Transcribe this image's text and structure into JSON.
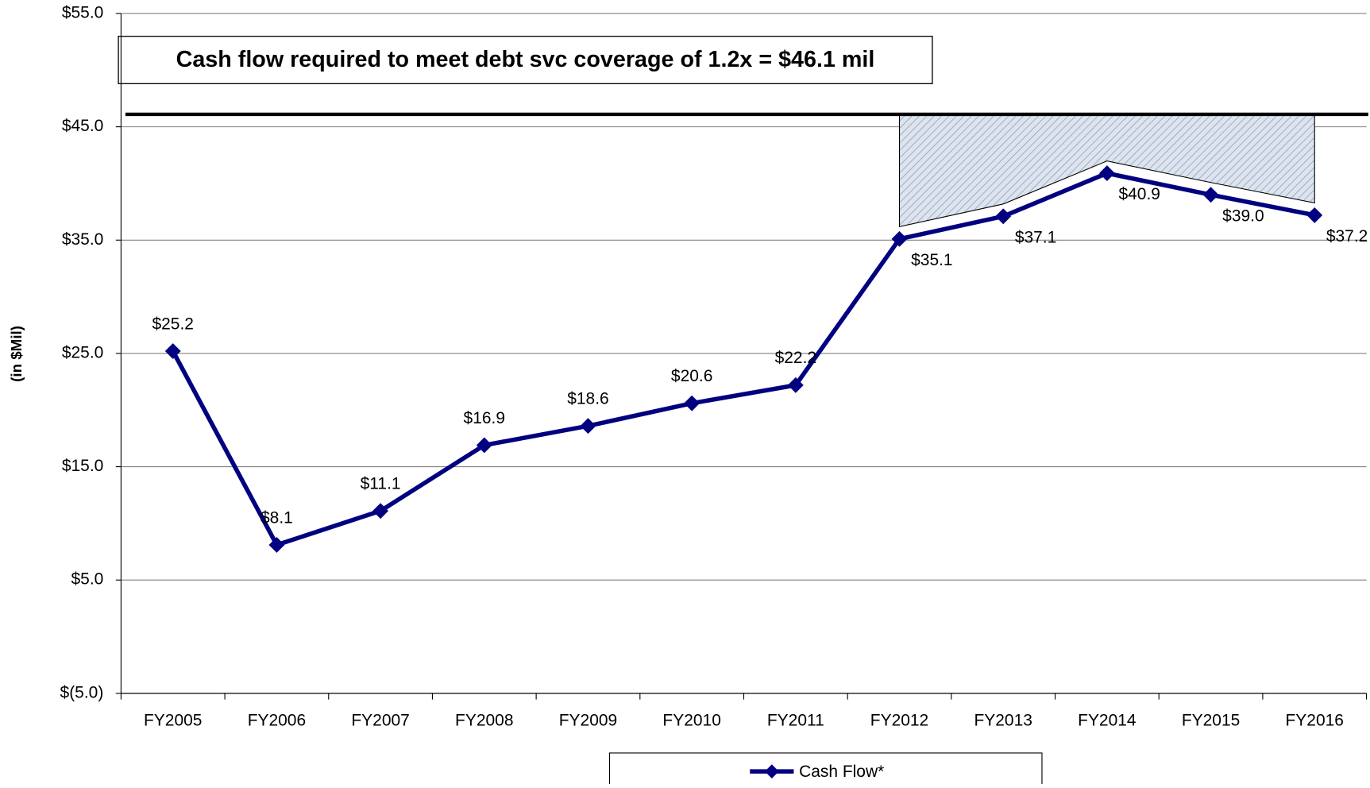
{
  "chart_data": {
    "type": "line",
    "y_axis_label": "(in $Mil)",
    "annotation": "Cash flow required to meet debt svc coverage of 1.2x = $46.1 mil",
    "reference_line": 46.1,
    "categories": [
      "FY2005",
      "FY2006",
      "FY2007",
      "FY2008",
      "FY2009",
      "FY2010",
      "FY2011",
      "FY2012",
      "FY2013",
      "FY2014",
      "FY2015",
      "FY2016"
    ],
    "series": [
      {
        "name": "Cash Flow*",
        "color": "#000080",
        "values": [
          25.2,
          8.1,
          11.1,
          16.9,
          18.6,
          20.6,
          22.2,
          35.1,
          37.1,
          40.9,
          39.0,
          37.2
        ],
        "value_labels": [
          "$25.2",
          "$8.1",
          "$11.1",
          "$16.9",
          "$18.6",
          "$20.6",
          "$22.2",
          "$35.1",
          "$37.1",
          "$40.9",
          "$39.0",
          "$37.2"
        ]
      }
    ],
    "ylim": [
      -5,
      55
    ],
    "yticks": [
      {
        "value": -5,
        "label": "$(5.0)"
      },
      {
        "value": 5,
        "label": "$5.0"
      },
      {
        "value": 15,
        "label": "$15.0"
      },
      {
        "value": 25,
        "label": "$25.0"
      },
      {
        "value": 35,
        "label": "$35.0"
      },
      {
        "value": 45,
        "label": "$45.0"
      },
      {
        "value": 55,
        "label": "$55.0"
      }
    ],
    "grid": true
  }
}
